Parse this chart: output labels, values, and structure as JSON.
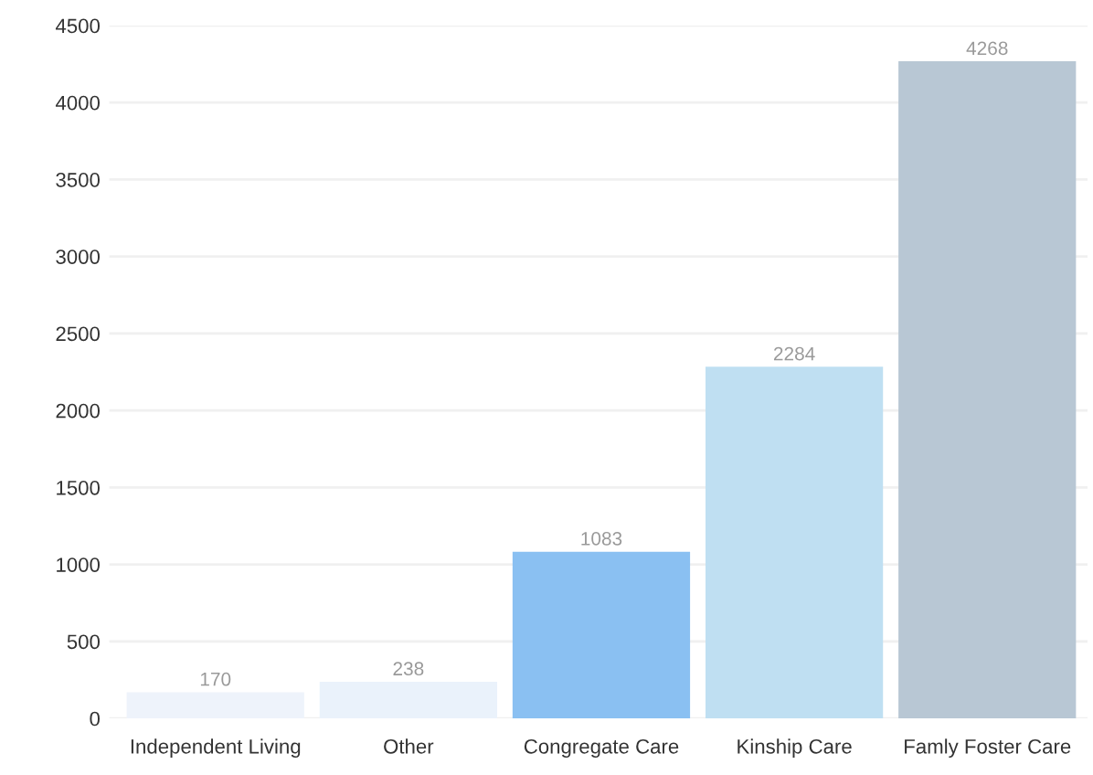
{
  "chart_data": {
    "type": "bar",
    "categories": [
      "Independent Living",
      "Other",
      "Congregate Care",
      "Kinship Care",
      "Famly Foster Care"
    ],
    "values": [
      170,
      238,
      1083,
      2284,
      4268
    ],
    "colors": [
      "#eef3fb",
      "#eaf2fb",
      "#8ac0f2",
      "#bfdff2",
      "#b8c7d4"
    ],
    "ylim": [
      0,
      4500
    ],
    "yticks": [
      0,
      500,
      1000,
      1500,
      2000,
      2500,
      3000,
      3500,
      4000,
      4500
    ],
    "grid": "y",
    "data_labels": true
  }
}
